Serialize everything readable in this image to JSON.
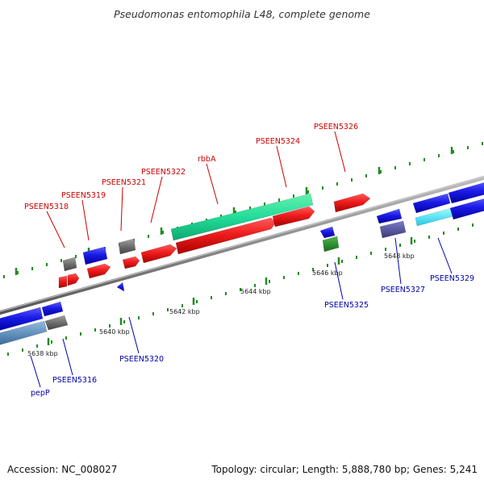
{
  "title": "Pseudomonas entomophila L48, complete genome",
  "footer": {
    "accession": "Accession: NC_008027",
    "info": "Topology: circular; Length: 5,888,780 bp; Genes: 5,241"
  },
  "scale_labels": [
    "5638 kbp",
    "5640 kbp",
    "5642 kbp",
    "5644 kbp",
    "5646 kbp",
    "5648 kbp"
  ],
  "gene_labels_top": [
    "PSEEN5318",
    "PSEEN5319",
    "PSEEN5321",
    "PSEEN5322",
    "rbbA",
    "PSEEN5324",
    "PSEEN5326"
  ],
  "gene_labels_bottom": [
    "pepP",
    "PSEEN5316",
    "PSEEN5320",
    "PSEEN5325",
    "PSEEN5327",
    "PSEEN5329"
  ],
  "colors": {
    "forward": "#e8141c",
    "reverse": "#1a1ae6",
    "rrna": "#22dd99",
    "other": "#707070",
    "backbone": "#8a8a8a",
    "tick": "#228b22",
    "label_top": "#cc0000",
    "label_bottom": "#0000aa"
  }
}
